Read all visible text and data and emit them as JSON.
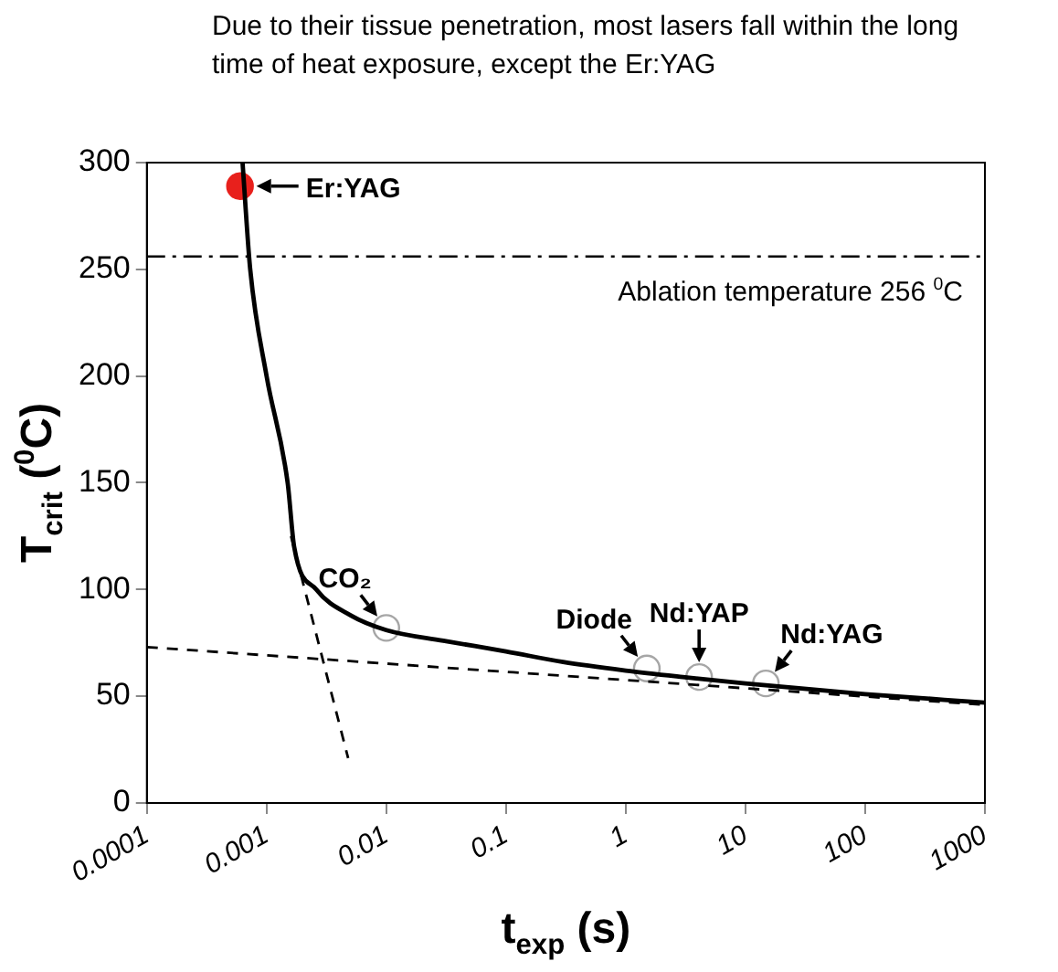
{
  "chart_data": {
    "type": "line",
    "title": "Due to their tissue penetration, most lasers fall within the long time of heat exposure, except the Er:YAG",
    "xlabel": "t$_{exp}$ (s)",
    "ylabel": "T$_{crit}$ ($^{0}$C)",
    "log": "x",
    "grid": false,
    "legend": false,
    "xlim": [
      0.0001,
      1000
    ],
    "xticks": [
      0.0001,
      0.001,
      0.01,
      0.1,
      1,
      10,
      100,
      1000
    ],
    "ylim": [
      0,
      300
    ],
    "yticks": [
      0,
      50,
      100,
      150,
      200,
      250,
      300
    ],
    "series": [
      {
        "color": "#000000",
        "line_style": "solid",
        "marker": "none",
        "x": [
          0.00063,
          0.00073,
          0.001,
          0.0015,
          0.0017,
          0.0026,
          0.005,
          0.01,
          0.03,
          0.1,
          0.3,
          1,
          3,
          10,
          100,
          1000
        ],
        "values": [
          300,
          250,
          200,
          150,
          120,
          100,
          88,
          81,
          76,
          71,
          66,
          62,
          59,
          56,
          51,
          47
        ]
      },
      {
        "color": "#000000",
        "line_style": "dashed",
        "marker": "none",
        "x": [
          0.0001,
          1000
        ],
        "values": [
          73,
          46
        ]
      },
      {
        "color": "#000000",
        "line_style": "dashed",
        "marker": "none",
        "x": [
          0.0016,
          0.0048
        ],
        "values": [
          125,
          21
        ]
      },
      {
        "type": "scatter",
        "color": "#e8201c",
        "marker": "circle",
        "x": [
          0.0006
        ],
        "values": [
          289
        ]
      },
      {
        "type": "scatter",
        "color": "#a6a6a6",
        "marker": "circle",
        "x": [
          0.01,
          1.5,
          4.1,
          14.8
        ],
        "values": [
          82,
          63,
          59,
          56
        ]
      }
    ],
    "ref_lines": [
      {
        "axis": "y",
        "value": 256,
        "label": "Ablation temperature 256 $^{0}$C",
        "line_style": "dashdot",
        "color": "#000000"
      }
    ],
    "annotations": [
      {
        "text": "Er:YAG",
        "x": 0.0006,
        "y": 289
      },
      {
        "text": "CO₂",
        "x": 0.01,
        "y": 82
      },
      {
        "text": "Diode",
        "x": 1.5,
        "y": 63
      },
      {
        "text": "Nd:YAP",
        "x": 4.1,
        "y": 59
      },
      {
        "text": "Nd:YAG",
        "x": 14.8,
        "y": 56
      }
    ]
  }
}
